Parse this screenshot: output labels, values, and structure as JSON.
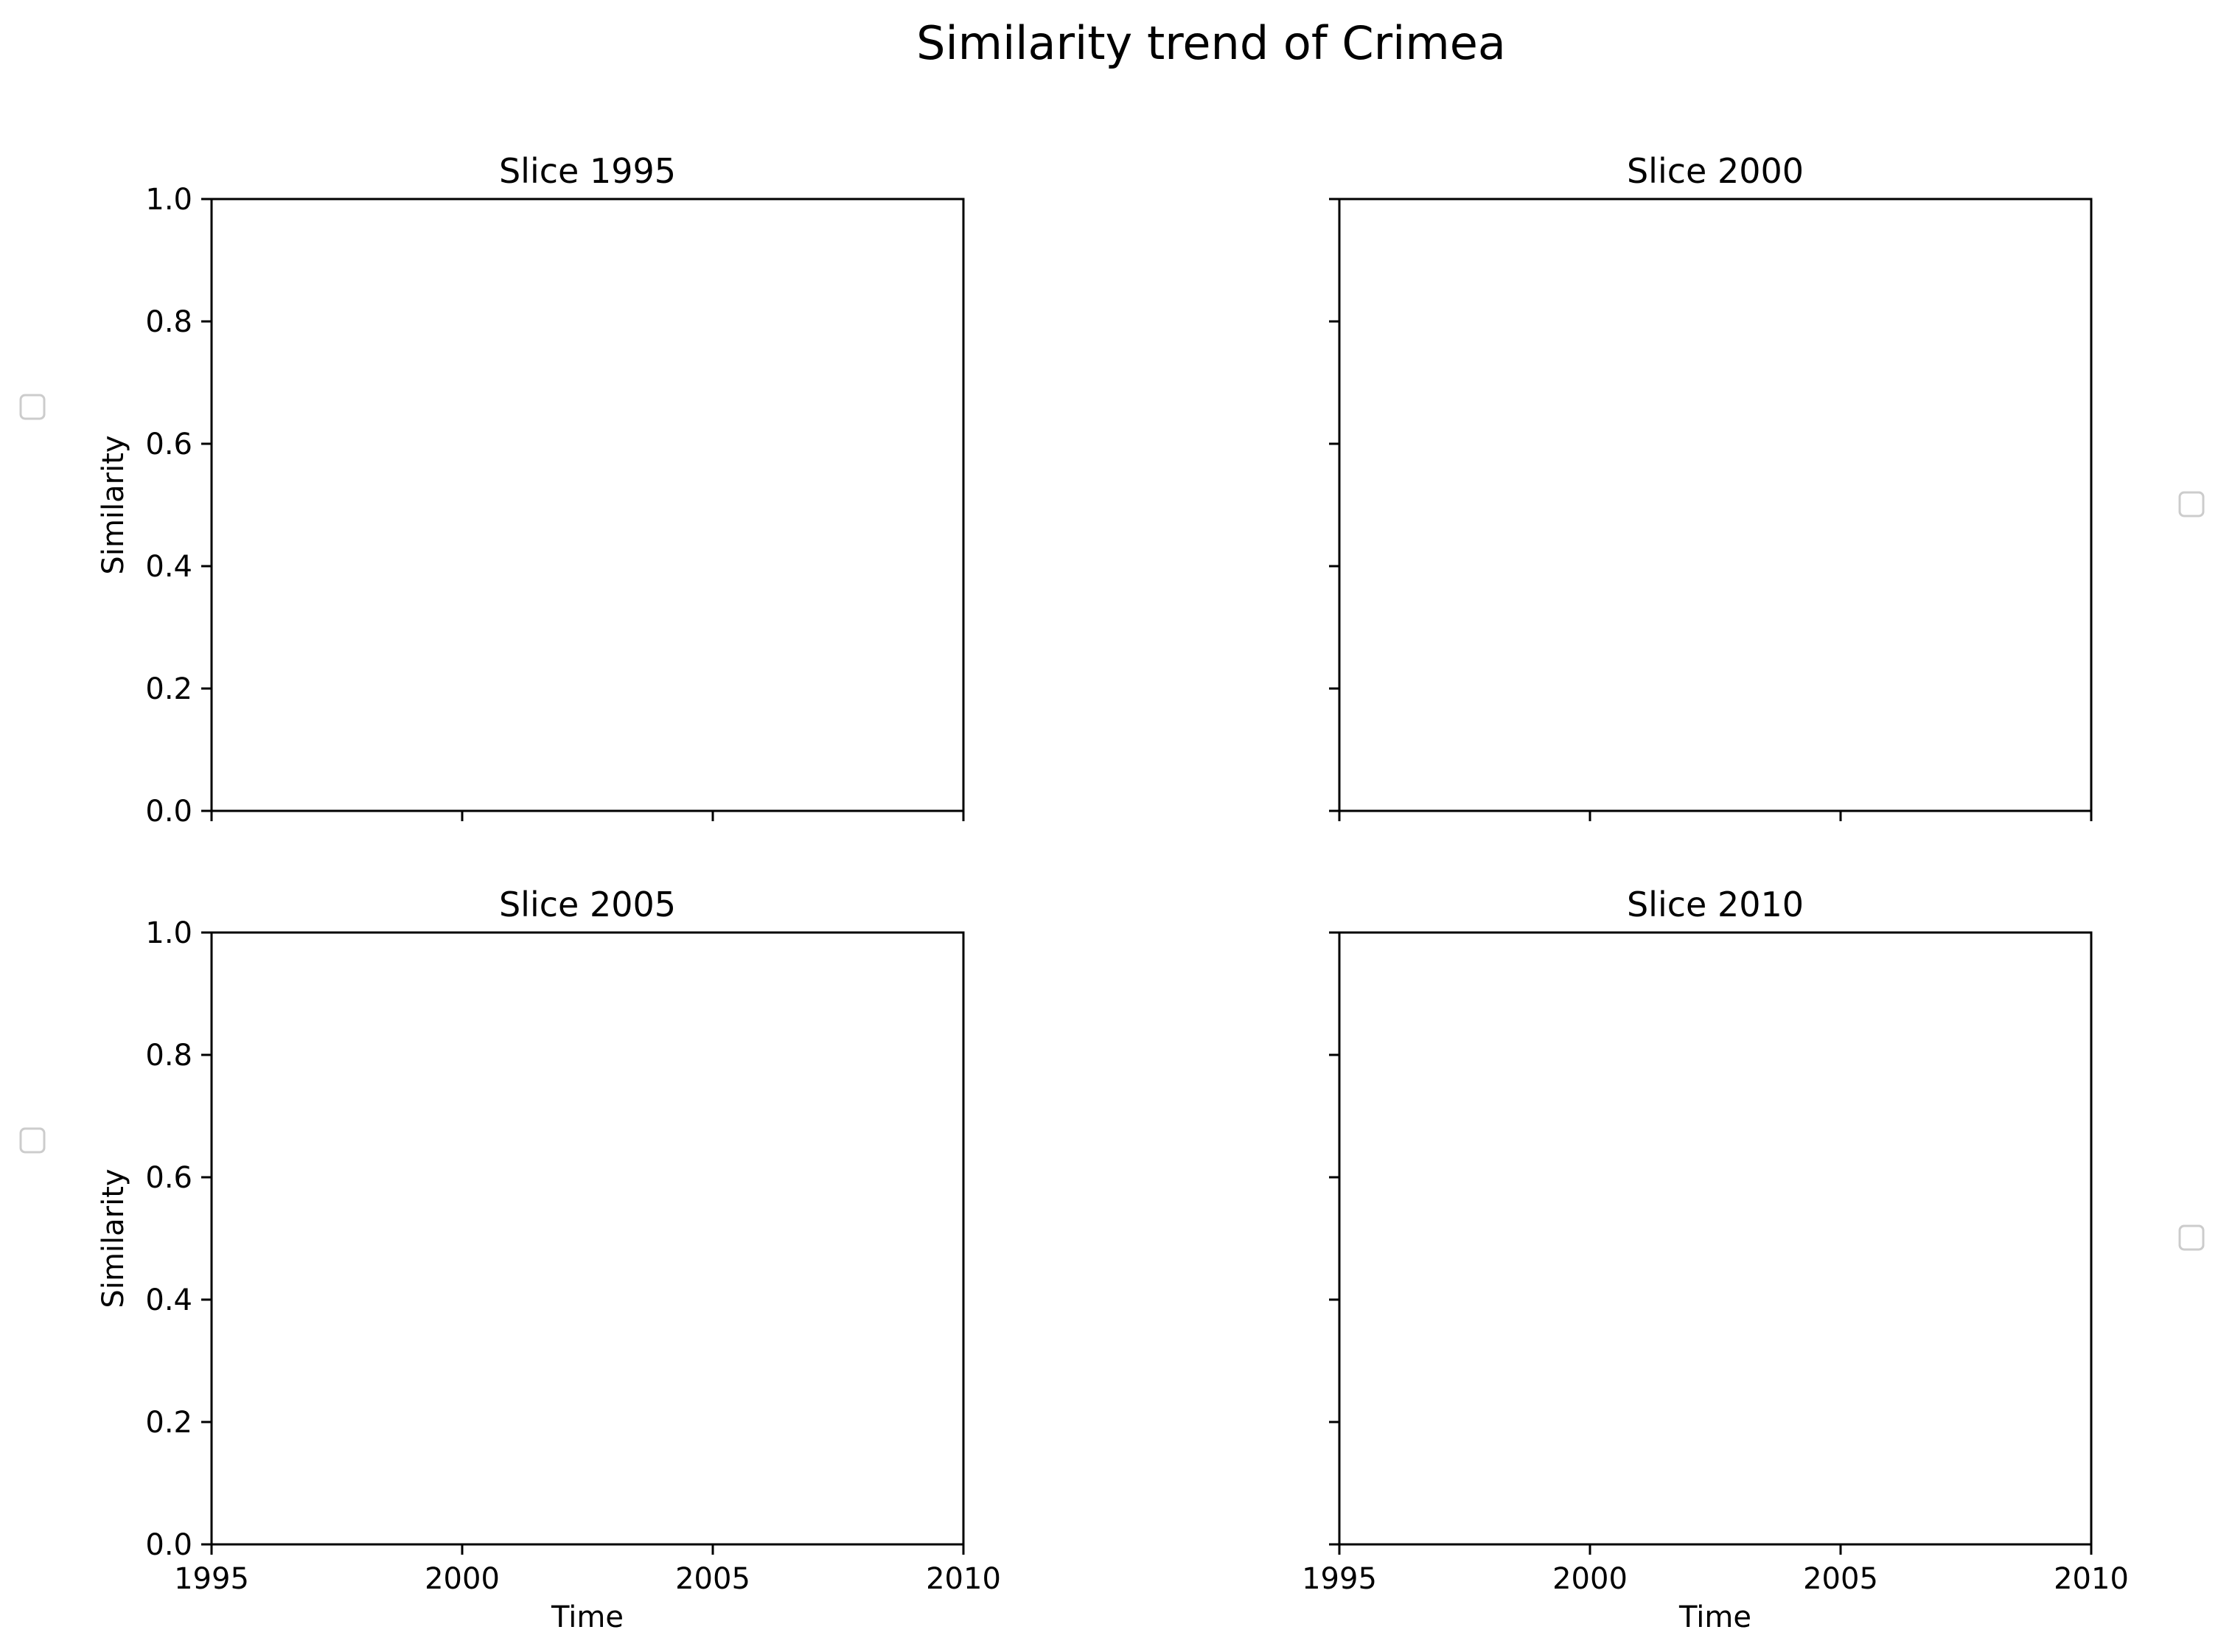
{
  "chart_data": {
    "type": "line",
    "title": "Similarity trend of Crimea",
    "layout": "2x2 grid of subplots, shared x and y axes",
    "panels": [
      {
        "title": "Slice 1995",
        "series": []
      },
      {
        "title": "Slice 2000",
        "series": []
      },
      {
        "title": "Slice 2005",
        "series": []
      },
      {
        "title": "Slice 2010",
        "series": []
      }
    ],
    "xlabel": "Time",
    "ylabel": "Similarity",
    "xlim": [
      1995,
      2010
    ],
    "ylim": [
      0,
      1
    ],
    "x_ticks": [
      "1995",
      "2000",
      "2005",
      "2010"
    ],
    "y_ticks": [
      "0.0",
      "0.2",
      "0.4",
      "0.6",
      "0.8",
      "1.0"
    ],
    "grid": false,
    "legend": "empty legend box outside each panel"
  }
}
